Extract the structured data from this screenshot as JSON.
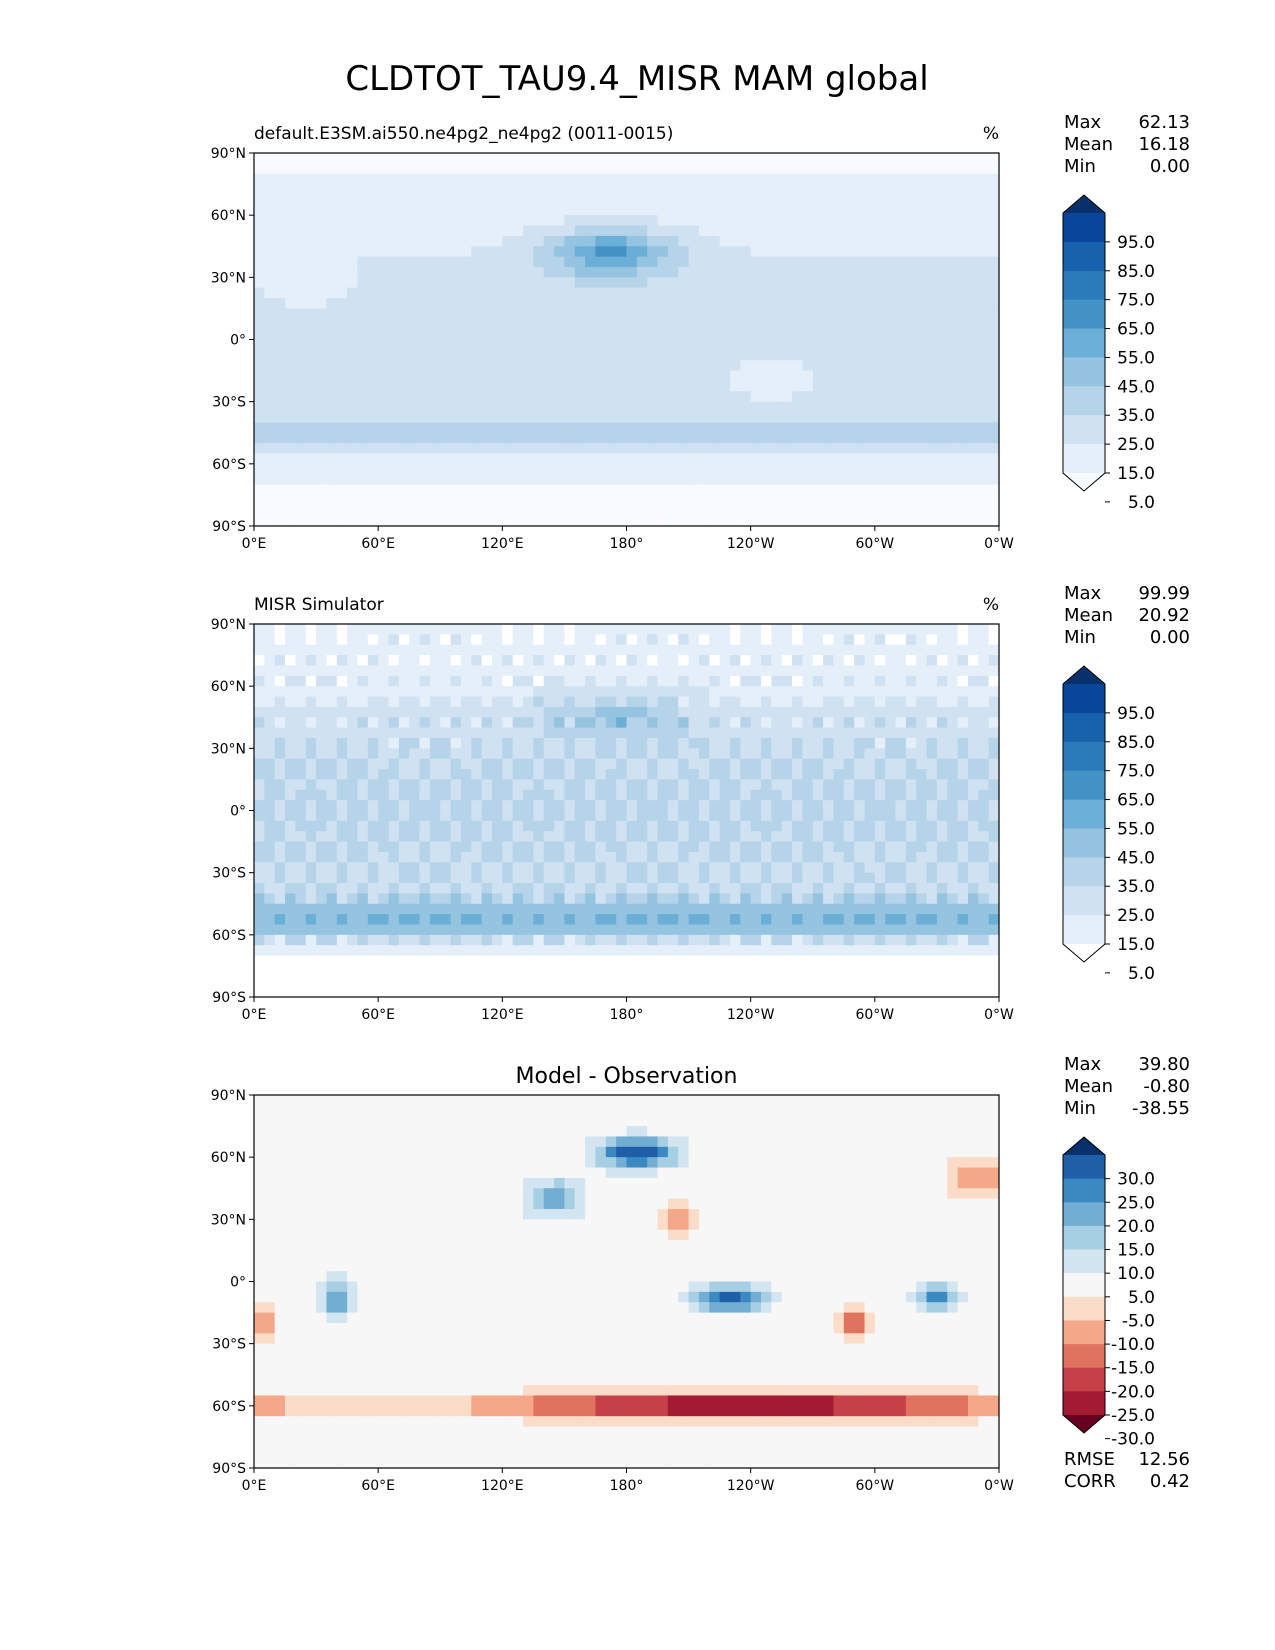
{
  "title": "CLDTOT_TAU9.4_MISR MAM global",
  "lat_labels": [
    "90°N",
    "60°N",
    "30°N",
    "0°",
    "30°S",
    "60°S",
    "90°S"
  ],
  "lon_labels": [
    "0°E",
    "60°E",
    "120°E",
    "180°",
    "120°W",
    "60°W",
    "0°W"
  ],
  "panels": [
    {
      "id": "model",
      "title_left": "default.E3SM.ai550.ne4pg2_ne4pg2 (0011-0015)",
      "title_center": "",
      "units": "%",
      "stats": [
        {
          "label": "Max",
          "value": "62.13"
        },
        {
          "label": "Mean",
          "value": "16.18"
        },
        {
          "label": "Min",
          "value": "0.00"
        }
      ],
      "colorbar_ticks": [
        "95.0",
        "85.0",
        "75.0",
        "65.0",
        "55.0",
        "45.0",
        "35.0",
        "25.0",
        "15.0",
        "5.0"
      ],
      "colorbar_colors": [
        "#08306b",
        "#08469a",
        "#1662ad",
        "#2b7bba",
        "#4292c6",
        "#6baed6",
        "#94c4df",
        "#b6d4e9",
        "#d0e1f2",
        "#e5eff9",
        "#f7fbff"
      ],
      "extra_stats": []
    },
    {
      "id": "obs",
      "title_left": "MISR Simulator",
      "title_center": "",
      "units": "%",
      "stats": [
        {
          "label": "Max",
          "value": "99.99"
        },
        {
          "label": "Mean",
          "value": "20.92"
        },
        {
          "label": "Min",
          "value": "0.00"
        }
      ],
      "colorbar_ticks": [
        "95.0",
        "85.0",
        "75.0",
        "65.0",
        "55.0",
        "45.0",
        "35.0",
        "25.0",
        "15.0",
        "5.0"
      ],
      "colorbar_colors": [
        "#08306b",
        "#08469a",
        "#1662ad",
        "#2b7bba",
        "#4292c6",
        "#6baed6",
        "#94c4df",
        "#b6d4e9",
        "#d0e1f2",
        "#e5eff9",
        "#ffffff"
      ],
      "extra_stats": []
    },
    {
      "id": "diff",
      "title_left": "",
      "title_center": "Model - Observation",
      "units": "",
      "stats": [
        {
          "label": "Max",
          "value": "39.80"
        },
        {
          "label": "Mean",
          "value": "-0.80"
        },
        {
          "label": "Min",
          "value": "-38.55"
        }
      ],
      "colorbar_ticks": [
        "30.0",
        "25.0",
        "20.0",
        "15.0",
        "10.0",
        "5.0",
        "-5.0",
        "-10.0",
        "-15.0",
        "-20.0",
        "-25.0",
        "-30.0"
      ],
      "colorbar_colors": [
        "#08306b",
        "#1f5fa8",
        "#3a89c1",
        "#72aed3",
        "#a7cfe4",
        "#d2e5f0",
        "#f7f7f7",
        "#fbdcc8",
        "#f4a889",
        "#e0735e",
        "#c6404a",
        "#a31a33",
        "#67001f"
      ],
      "extra_stats": [
        {
          "label": "RMSE",
          "value": "12.56"
        },
        {
          "label": "CORR",
          "value": "0.42"
        }
      ]
    }
  ],
  "chart_data": [
    {
      "type": "heatmap",
      "title": "default.E3SM.ai550.ne4pg2_ne4pg2 (0011-0015)",
      "units": "%",
      "x_range": [
        0,
        360
      ],
      "y_range": [
        -90,
        90
      ],
      "levels": [
        0,
        5,
        15,
        25,
        35,
        45,
        55,
        65,
        75,
        85,
        95,
        100
      ],
      "stats": {
        "max": 62.13,
        "mean": 16.18,
        "min": 0.0
      },
      "features": [
        {
          "lon": 175,
          "lat": 42,
          "value": 58
        },
        {
          "lon": 20,
          "lat": 30,
          "value": 8
        },
        {
          "lon": 340,
          "lat": 60,
          "value": 22
        }
      ]
    },
    {
      "type": "heatmap",
      "title": "MISR Simulator",
      "units": "%",
      "x_range": [
        0,
        360
      ],
      "y_range": [
        -90,
        90
      ],
      "levels": [
        0,
        5,
        15,
        25,
        35,
        45,
        55,
        65,
        75,
        85,
        95,
        100
      ],
      "stats": {
        "max": 99.99,
        "mean": 20.92,
        "min": 0.0
      }
    },
    {
      "type": "heatmap",
      "title": "Model - Observation",
      "x_range": [
        0,
        360
      ],
      "y_range": [
        -90,
        90
      ],
      "levels": [
        -35,
        -30,
        -25,
        -20,
        -15,
        -10,
        -5,
        5,
        10,
        15,
        20,
        25,
        30,
        35
      ],
      "stats": {
        "max": 39.8,
        "mean": -0.8,
        "min": -38.55,
        "rmse": 12.56,
        "corr": 0.42
      }
    }
  ]
}
